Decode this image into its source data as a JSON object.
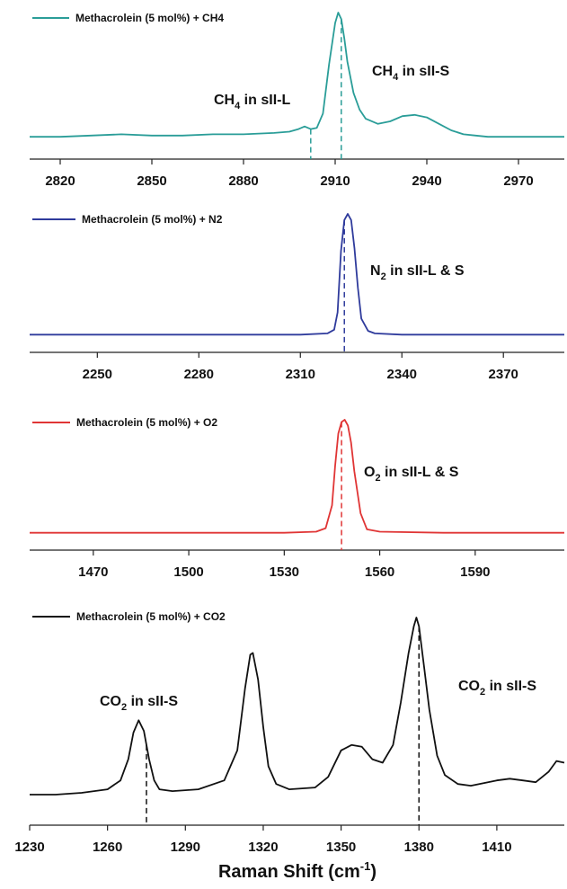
{
  "xlabel": {
    "pre": "Raman Shift (cm",
    "sup": "-1",
    "post": ")"
  },
  "chart_data": [
    {
      "type": "line",
      "series": [
        {
          "name": "Methacrolein (5 mol%) + CH4",
          "color": "#2a9d98",
          "x": [
            2810,
            2820,
            2830,
            2840,
            2850,
            2860,
            2870,
            2880,
            2890,
            2895,
            2898,
            2900,
            2902,
            2904,
            2906,
            2908,
            2910,
            2911,
            2912,
            2913,
            2914,
            2916,
            2918,
            2920,
            2924,
            2928,
            2932,
            2936,
            2940,
            2944,
            2948,
            2952,
            2956,
            2960,
            2970,
            2985
          ],
          "y": [
            0.04,
            0.04,
            0.05,
            0.06,
            0.05,
            0.05,
            0.06,
            0.06,
            0.07,
            0.08,
            0.1,
            0.12,
            0.1,
            0.11,
            0.22,
            0.6,
            0.92,
            1.0,
            0.95,
            0.8,
            0.62,
            0.38,
            0.25,
            0.18,
            0.14,
            0.16,
            0.2,
            0.21,
            0.19,
            0.14,
            0.09,
            0.06,
            0.05,
            0.04,
            0.04,
            0.04
          ]
        }
      ],
      "xlim": [
        2810,
        2985
      ],
      "ticks": [
        2820,
        2850,
        2880,
        2910,
        2940,
        2970
      ],
      "peak_lines": [
        2902,
        2912
      ],
      "annotations": [
        {
          "main": "CH",
          "sub": "4",
          "rest": " in sII-L"
        },
        {
          "main": "CH",
          "sub": "4",
          "rest": " in sII-S"
        }
      ]
    },
    {
      "type": "line",
      "series": [
        {
          "name": "Methacrolein (5 mol%) + N2",
          "color": "#2f3b9c",
          "x": [
            2230,
            2250,
            2270,
            2290,
            2300,
            2310,
            2318,
            2320,
            2321,
            2322,
            2323,
            2324,
            2325,
            2326,
            2327,
            2328,
            2330,
            2332,
            2340,
            2360,
            2388
          ],
          "y": [
            0.02,
            0.02,
            0.02,
            0.02,
            0.02,
            0.02,
            0.03,
            0.06,
            0.2,
            0.7,
            0.95,
            1.0,
            0.95,
            0.72,
            0.4,
            0.15,
            0.05,
            0.03,
            0.02,
            0.02,
            0.02
          ]
        }
      ],
      "xlim": [
        2230,
        2388
      ],
      "ticks": [
        2250,
        2280,
        2310,
        2340,
        2370
      ],
      "peak_lines": [
        2323
      ],
      "annotations": [
        {
          "main": "N",
          "sub": "2",
          "rest": " in sII-L & S"
        }
      ]
    },
    {
      "type": "line",
      "series": [
        {
          "name": "Methacrolein (5 mol%) + O2",
          "color": "#e03535",
          "x": [
            1450,
            1470,
            1490,
            1510,
            1530,
            1540,
            1543,
            1545,
            1546,
            1547,
            1548,
            1549,
            1550,
            1551,
            1552,
            1554,
            1556,
            1560,
            1580,
            1600,
            1618
          ],
          "y": [
            0.01,
            0.01,
            0.01,
            0.01,
            0.01,
            0.02,
            0.05,
            0.25,
            0.6,
            0.88,
            0.98,
            1.0,
            0.95,
            0.8,
            0.55,
            0.18,
            0.04,
            0.02,
            0.01,
            0.01,
            0.01
          ]
        }
      ],
      "xlim": [
        1450,
        1618
      ],
      "ticks": [
        1470,
        1500,
        1530,
        1560,
        1590
      ],
      "peak_lines": [
        1548
      ],
      "annotations": [
        {
          "main": "O",
          "sub": "2",
          "rest": " in sII-L & S"
        }
      ]
    },
    {
      "type": "line",
      "series": [
        {
          "name": "Methacrolein (5 mol%) + CO2",
          "color": "#111111",
          "x": [
            1230,
            1240,
            1250,
            1260,
            1265,
            1268,
            1270,
            1272,
            1274,
            1276,
            1278,
            1280,
            1285,
            1295,
            1305,
            1310,
            1313,
            1315,
            1316,
            1318,
            1320,
            1322,
            1325,
            1330,
            1340,
            1345,
            1350,
            1354,
            1358,
            1362,
            1366,
            1370,
            1373,
            1376,
            1378,
            1379,
            1380,
            1382,
            1384,
            1387,
            1390,
            1395,
            1400,
            1410,
            1415,
            1420,
            1425,
            1430,
            1433,
            1436
          ],
          "y": [
            0.0,
            0.0,
            0.01,
            0.03,
            0.08,
            0.2,
            0.35,
            0.42,
            0.36,
            0.2,
            0.08,
            0.03,
            0.02,
            0.03,
            0.08,
            0.25,
            0.6,
            0.79,
            0.8,
            0.65,
            0.38,
            0.16,
            0.06,
            0.03,
            0.04,
            0.1,
            0.25,
            0.28,
            0.27,
            0.2,
            0.18,
            0.28,
            0.52,
            0.8,
            0.95,
            1.0,
            0.95,
            0.72,
            0.48,
            0.22,
            0.11,
            0.06,
            0.05,
            0.08,
            0.09,
            0.08,
            0.07,
            0.13,
            0.19,
            0.18
          ]
        }
      ],
      "xlim": [
        1230,
        1436
      ],
      "ticks": [
        1230,
        1260,
        1290,
        1320,
        1350,
        1380,
        1410
      ],
      "peak_lines": [
        1275,
        1380
      ],
      "annotations": [
        {
          "main": "CO",
          "sub": "2",
          "rest": " in sII-S"
        },
        {
          "main": "CO",
          "sub": "2",
          "rest": " in sII-S"
        }
      ]
    }
  ]
}
